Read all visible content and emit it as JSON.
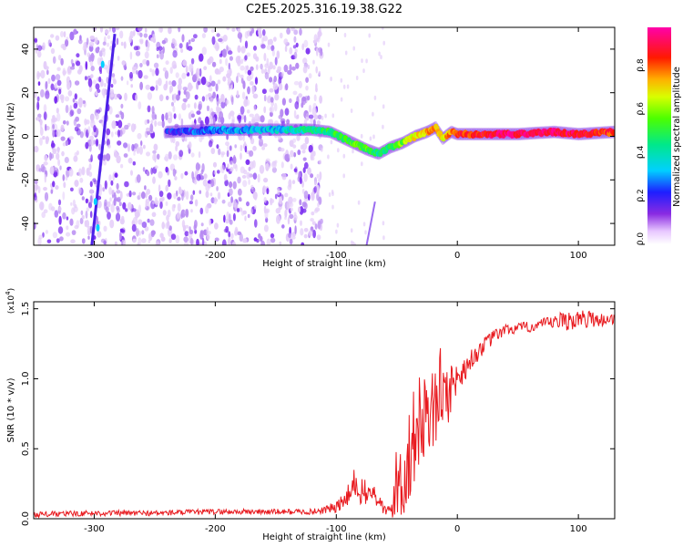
{
  "title": "C2E5.2025.316.19.38.G22",
  "colors": {
    "plot_border": "#000000",
    "snr_line": "#e8191e",
    "spectrogram_low": "#e6d2f7",
    "spectrogram_mid": "#7a2cf0"
  },
  "chart_data": [
    {
      "id": "spectrogram",
      "type": "heatmap",
      "xlabel": "Height of straight line (km)",
      "ylabel": "Frequency (Hz)",
      "xlim": [
        -350,
        130
      ],
      "ylim": [
        -50,
        50
      ],
      "xticks": [
        -300,
        -200,
        -100,
        0,
        100
      ],
      "xtick_labels": [
        "-300",
        "-200",
        "-100",
        "0",
        "100"
      ],
      "yticks": [
        -40,
        -20,
        0,
        20,
        40
      ],
      "ytick_labels": [
        "-40",
        "-20",
        "0",
        "20",
        "40"
      ],
      "colorbar": {
        "label": "Normalized spectral amplitude",
        "range": [
          0.0,
          1.0
        ],
        "ticks": [
          0.0,
          0.2,
          0.4,
          0.6,
          0.8
        ],
        "tick_labels": [
          "0.0",
          "0.2",
          "0.4",
          "0.6",
          "0.8"
        ],
        "colormap": "rainbow (white-violet-blue-cyan-green-yellow-orange-red-magenta)"
      },
      "ridge_track": {
        "description": "dominant spectral line frequency vs height",
        "x": [
          -240,
          -200,
          -150,
          -120,
          -105,
          -90,
          -75,
          -65,
          -55,
          -45,
          -35,
          -25,
          -18,
          -12,
          -5,
          0,
          20,
          50,
          80,
          100,
          130
        ],
        "y": [
          2,
          3,
          3,
          3,
          2,
          -2,
          -6,
          -8,
          -5,
          -3,
          0,
          2,
          4,
          -1,
          2,
          1,
          1,
          1,
          2,
          1,
          2
        ],
        "amplitude": [
          0.2,
          0.3,
          0.35,
          0.45,
          0.5,
          0.55,
          0.55,
          0.45,
          0.5,
          0.6,
          0.7,
          0.75,
          0.8,
          0.7,
          0.8,
          0.85,
          0.9,
          0.95,
          0.95,
          0.9,
          0.85
        ]
      },
      "diagonal_streaks": [
        {
          "x": [
            -302,
            -283
          ],
          "y": [
            -50,
            47
          ]
        },
        {
          "x": [
            -75,
            -68
          ],
          "y": [
            -50,
            -30
          ]
        }
      ],
      "noise_region_x": [
        -350,
        -120
      ]
    },
    {
      "id": "snr",
      "type": "line",
      "xlabel": "Height of straight line (km)",
      "ylabel": "SNR (10 * v/v)",
      "y_scale_label": "(x10",
      "y_scale_exp": "4",
      "y_scale_close": ")",
      "xlim": [
        -350,
        130
      ],
      "ylim": [
        0.0,
        1.55
      ],
      "xticks": [
        -300,
        -200,
        -100,
        0,
        100
      ],
      "xtick_labels": [
        "-300",
        "-200",
        "-100",
        "0",
        "100"
      ],
      "yticks": [
        0.0,
        0.5,
        1.0,
        1.5
      ],
      "ytick_labels": [
        "0.0",
        "0.5",
        "1.0",
        "1.5"
      ],
      "series": [
        {
          "name": "SNR",
          "x": [
            -350,
            -300,
            -250,
            -200,
            -150,
            -120,
            -100,
            -90,
            -85,
            -80,
            -75,
            -70,
            -65,
            -60,
            -55,
            -50,
            -45,
            -40,
            -35,
            -30,
            -25,
            -20,
            -15,
            -10,
            -5,
            0,
            10,
            20,
            30,
            40,
            50,
            60,
            70,
            80,
            90,
            100,
            110,
            120,
            130
          ],
          "values": [
            0.03,
            0.04,
            0.04,
            0.05,
            0.05,
            0.05,
            0.08,
            0.15,
            0.25,
            0.2,
            0.17,
            0.2,
            0.12,
            0.06,
            0.05,
            0.25,
            0.3,
            0.45,
            0.6,
            0.7,
            0.8,
            0.75,
            0.95,
            0.85,
            0.95,
            1.0,
            1.12,
            1.22,
            1.3,
            1.35,
            1.36,
            1.37,
            1.39,
            1.4,
            1.42,
            1.42,
            1.43,
            1.42,
            1.43
          ],
          "noise_amplitude": [
            0.02,
            0.02,
            0.02,
            0.02,
            0.02,
            0.02,
            0.04,
            0.1,
            0.12,
            0.1,
            0.1,
            0.08,
            0.06,
            0.04,
            0.05,
            0.3,
            0.35,
            0.35,
            0.35,
            0.35,
            0.3,
            0.3,
            0.3,
            0.25,
            0.2,
            0.1,
            0.08,
            0.06,
            0.05,
            0.04,
            0.04,
            0.04,
            0.04,
            0.05,
            0.08,
            0.07,
            0.06,
            0.05,
            0.04
          ]
        }
      ]
    }
  ]
}
